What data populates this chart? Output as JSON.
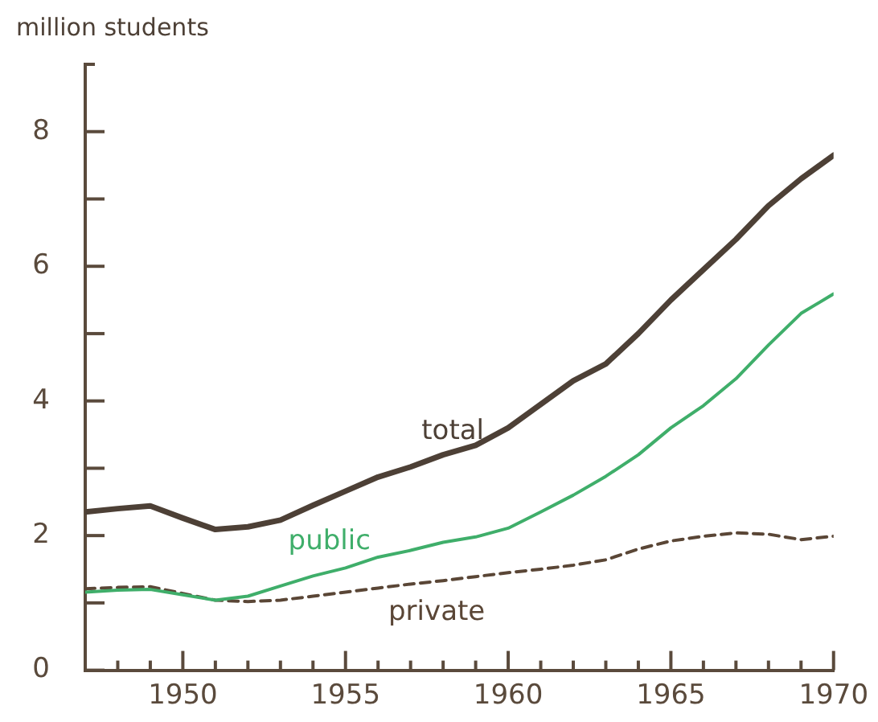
{
  "chart_data": {
    "type": "line",
    "ylabel": "million students",
    "x": [
      1947,
      1948,
      1949,
      1950,
      1951,
      1952,
      1953,
      1954,
      1955,
      1956,
      1957,
      1958,
      1959,
      1960,
      1961,
      1962,
      1963,
      1964,
      1965,
      1966,
      1967,
      1968,
      1969,
      1970
    ],
    "series": [
      {
        "name": "total",
        "color": "#4d4036",
        "values": [
          2.35,
          2.4,
          2.44,
          2.26,
          2.09,
          2.13,
          2.23,
          2.45,
          2.66,
          2.87,
          3.02,
          3.2,
          3.34,
          3.6,
          3.95,
          4.3,
          4.55,
          5.0,
          5.5,
          5.95,
          6.4,
          6.9,
          7.3,
          7.65
        ]
      },
      {
        "name": "public",
        "color": "#3fae6a",
        "values": [
          1.16,
          1.19,
          1.2,
          1.12,
          1.04,
          1.1,
          1.25,
          1.4,
          1.52,
          1.68,
          1.78,
          1.9,
          1.98,
          2.11,
          2.35,
          2.6,
          2.88,
          3.2,
          3.6,
          3.93,
          4.33,
          4.83,
          5.3,
          5.59
        ]
      },
      {
        "name": "private",
        "color": "#5a4636",
        "line_style": "dashed",
        "values": [
          1.21,
          1.23,
          1.24,
          1.14,
          1.04,
          1.02,
          1.04,
          1.1,
          1.16,
          1.22,
          1.28,
          1.33,
          1.39,
          1.45,
          1.5,
          1.56,
          1.64,
          1.8,
          1.92,
          1.99,
          2.04,
          2.02,
          1.94,
          1.99
        ]
      }
    ],
    "xlim": [
      1947,
      1970
    ],
    "xticks": [
      {
        "value": 1948,
        "label": null
      },
      {
        "value": 1949,
        "label": null
      },
      1950,
      {
        "value": 1951,
        "label": null
      },
      {
        "value": 1952,
        "label": null
      },
      {
        "value": 1953,
        "label": null
      },
      {
        "value": 1954,
        "label": null
      },
      1955,
      {
        "value": 1956,
        "label": null
      },
      {
        "value": 1957,
        "label": null
      },
      {
        "value": 1958,
        "label": null
      },
      {
        "value": 1959,
        "label": null
      },
      1960,
      {
        "value": 1961,
        "label": null
      },
      {
        "value": 1962,
        "label": null
      },
      {
        "value": 1963,
        "label": null
      },
      {
        "value": 1964,
        "label": null
      },
      1965,
      {
        "value": 1966,
        "label": null
      },
      {
        "value": 1967,
        "label": null
      },
      {
        "value": 1968,
        "label": null
      },
      {
        "value": 1969,
        "label": null
      },
      1970
    ],
    "ylim": [
      0,
      9
    ],
    "yticks": [
      0,
      {
        "value": 1,
        "label": null
      },
      2,
      {
        "value": 3,
        "label": null
      },
      4,
      {
        "value": 5,
        "label": null
      },
      6,
      {
        "value": 7,
        "label": null
      },
      8
    ],
    "grid": false,
    "legend": false,
    "marker": "none",
    "line_style": "solid"
  }
}
